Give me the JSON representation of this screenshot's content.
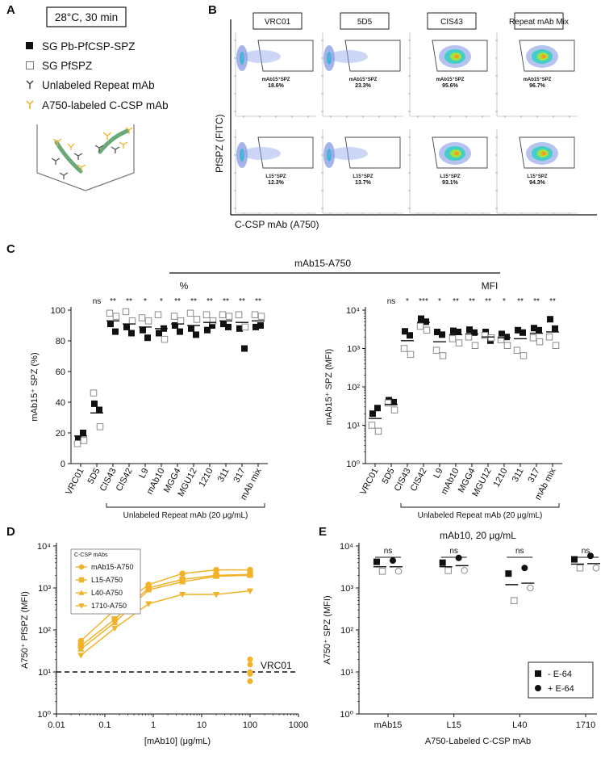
{
  "panel_labels": {
    "a": "A",
    "b": "B",
    "c": "C",
    "d": "D",
    "e": "E"
  },
  "panelA": {
    "condition": "28°C, 30 min",
    "legend": [
      "SG Pb-PfCSP-SPZ",
      "SG PfSPZ",
      "Unlabeled Repeat mAb",
      "A750-labeled C-CSP mAb"
    ],
    "colors": {
      "repeat_mab": "#555555",
      "ccsp_mab": "#f2b229",
      "sporozoite": "#6aa978"
    }
  },
  "panelB": {
    "columns": [
      "VRC01",
      "5D5",
      "CIS43",
      "Repeat mAb Mix"
    ],
    "row1": {
      "label": "mAb15⁺SPZ",
      "values": [
        "18.6%",
        "23.3%",
        "95.6%",
        "96.7%"
      ]
    },
    "row2": {
      "label": "L15⁺SPZ",
      "values": [
        "12.3%",
        "13.7%",
        "93.1%",
        "94.3%"
      ]
    },
    "ylabel": "PfSPZ (FITC)",
    "xlabel": "C-CSP mAb (A750)"
  },
  "chart_data": [
    {
      "id": "C-percent",
      "type": "scatter",
      "header": "mAb15-A750",
      "subheader": "%",
      "ylabel": "mAb15⁺ SPZ (%)",
      "ylim": [
        0,
        100
      ],
      "yticks": [
        "0",
        "20",
        "40",
        "60",
        "80",
        "100"
      ],
      "categories": [
        "VRC01",
        "5D5",
        "CIS43",
        "CIS42",
        "L9",
        "mAb10",
        "MGG4",
        "MGU12",
        "1210",
        "311",
        "317",
        "mAb mix"
      ],
      "bracket_label": "Unlabeled Repeat mAb (20 μg/mL)",
      "significance": [
        "",
        "ns",
        "**",
        "**",
        "*",
        "*",
        "**",
        "**",
        "**",
        "**",
        "**",
        "**"
      ],
      "series": [
        {
          "name": "SG Pb-PfCSP-SPZ",
          "marker": "filled-square",
          "values": [
            [
              16,
              20
            ],
            [
              39,
              35
            ],
            [
              91,
              86
            ],
            [
              89,
              85
            ],
            [
              87,
              82
            ],
            [
              85,
              88
            ],
            [
              90,
              86
            ],
            [
              88,
              84
            ],
            [
              87,
              90
            ],
            [
              91,
              89
            ],
            [
              88,
              75
            ],
            [
              89,
              90
            ]
          ]
        },
        {
          "name": "SG PfSPZ",
          "marker": "open-square",
          "values": [
            [
              13,
              15
            ],
            [
              46,
              24
            ],
            [
              98,
              96
            ],
            [
              99,
              93
            ],
            [
              95,
              93
            ],
            [
              97,
              81
            ],
            [
              96,
              93
            ],
            [
              98,
              94
            ],
            [
              97,
              93
            ],
            [
              97,
              96
            ],
            [
              97,
              89
            ],
            [
              97,
              96
            ]
          ]
        }
      ],
      "means": [
        18,
        33,
        93,
        91,
        89,
        88,
        91,
        90,
        92,
        93,
        92,
        93
      ]
    },
    {
      "id": "C-MFI",
      "type": "scatter",
      "header": "mAb15-A750",
      "subheader": "MFI",
      "ylabel": "mAb15⁺ SPZ (MFI)",
      "yscale": "log",
      "ylim": [
        1,
        10000
      ],
      "yticks": [
        "10⁰",
        "10¹",
        "10²",
        "10³",
        "10⁴"
      ],
      "categories": [
        "VRC01",
        "5D5",
        "CIS43",
        "CIS42",
        "L9",
        "mAb10",
        "MGG4",
        "MGU12",
        "1210",
        "311",
        "317",
        "mAb mix"
      ],
      "bracket_label": "Unlabeled Repeat mAb (20 μg/mL)",
      "significance": [
        "",
        "ns",
        "*",
        "***",
        "*",
        "**",
        "**",
        "**",
        "*",
        "**",
        "**",
        "**"
      ],
      "series": [
        {
          "name": "SG Pb-PfCSP-SPZ",
          "marker": "filled-square",
          "values": [
            [
              20,
              28
            ],
            [
              45,
              40
            ],
            [
              2800,
              2200
            ],
            [
              6000,
              5000
            ],
            [
              2700,
              2300
            ],
            [
              2900,
              2700
            ],
            [
              3100,
              2600
            ],
            [
              2700,
              1600
            ],
            [
              2400,
              2000
            ],
            [
              3000,
              2600
            ],
            [
              3400,
              3000
            ],
            [
              5800,
              3300
            ]
          ]
        },
        {
          "name": "SG PfSPZ",
          "marker": "open-square",
          "values": [
            [
              10,
              7
            ],
            [
              38,
              25
            ],
            [
              1000,
              700
            ],
            [
              3800,
              3000
            ],
            [
              900,
              650
            ],
            [
              1800,
              1400
            ],
            [
              2000,
              1200
            ],
            [
              2200,
              1900
            ],
            [
              1700,
              1200
            ],
            [
              900,
              650
            ],
            [
              1900,
              1500
            ],
            [
              2000,
              1200
            ]
          ]
        }
      ],
      "means": [
        15,
        35,
        1600,
        4800,
        1500,
        2300,
        2400,
        2000,
        1900,
        1800,
        2500,
        2700
      ]
    },
    {
      "id": "D",
      "type": "line",
      "xscale": "log",
      "yscale": "log",
      "xlim": [
        0.01,
        1000
      ],
      "ylim": [
        1,
        10000
      ],
      "xticks": [
        "0.01",
        "0.1",
        "1",
        "10",
        "100",
        "1000"
      ],
      "yticks": [
        "10⁰",
        "10¹",
        "10²",
        "10³",
        "10⁴"
      ],
      "xlabel": "[mAb10] (μg/mL)",
      "ylabel": "A750⁺ PfSPZ (MFI)",
      "legend_title": "C-CSP mAbs",
      "x": [
        0.032,
        0.16,
        0.8,
        4,
        20,
        100
      ],
      "series": [
        {
          "name": "mAb15-A750",
          "marker": "circle",
          "values": [
            55,
            300,
            1200,
            2200,
            2700,
            2700
          ]
        },
        {
          "name": "L15-A750",
          "marker": "square",
          "values": [
            42,
            180,
            1000,
            1600,
            2000,
            2100
          ]
        },
        {
          "name": "L40-A750",
          "marker": "triangle-up",
          "values": [
            35,
            150,
            900,
            1400,
            1900,
            2000
          ]
        },
        {
          "name": "1710-A750",
          "marker": "triangle-down",
          "values": [
            25,
            110,
            420,
            700,
            700,
            850
          ]
        }
      ],
      "reference": {
        "label": "VRC01",
        "value": 10,
        "points": [
          20,
          15,
          10,
          9,
          6
        ]
      },
      "color": "#f2b229"
    },
    {
      "id": "E",
      "type": "scatter",
      "title": "mAb10, 20 μg/mL",
      "yscale": "log",
      "ylim": [
        1,
        10000
      ],
      "yticks": [
        "10⁰",
        "10¹",
        "10²",
        "10³",
        "10⁴"
      ],
      "ylabel": "A750⁺ SPZ (MFI)",
      "xlabel": "A750-Labeled C-CSP mAb",
      "categories": [
        "mAb15",
        "L15",
        "L40",
        "1710"
      ],
      "significance": [
        "ns",
        "ns",
        "ns",
        "ns"
      ],
      "series": [
        {
          "name": "- E-64",
          "marker": "square",
          "values": [
            [
              4200,
              2500
            ],
            [
              4000,
              2600
            ],
            [
              2200,
              500
            ],
            [
              4800,
              3000
            ]
          ]
        },
        {
          "name": "+ E-64",
          "marker": "circle",
          "values": [
            [
              4500,
              2500
            ],
            [
              5200,
              2600
            ],
            [
              3000,
              1000
            ],
            [
              5800,
              3000
            ]
          ]
        }
      ],
      "means": [
        [
          3200,
          3200
        ],
        [
          3200,
          3400
        ],
        [
          1200,
          1300
        ],
        [
          3700,
          3800
        ]
      ],
      "legend_position": "bottom-right"
    }
  ]
}
